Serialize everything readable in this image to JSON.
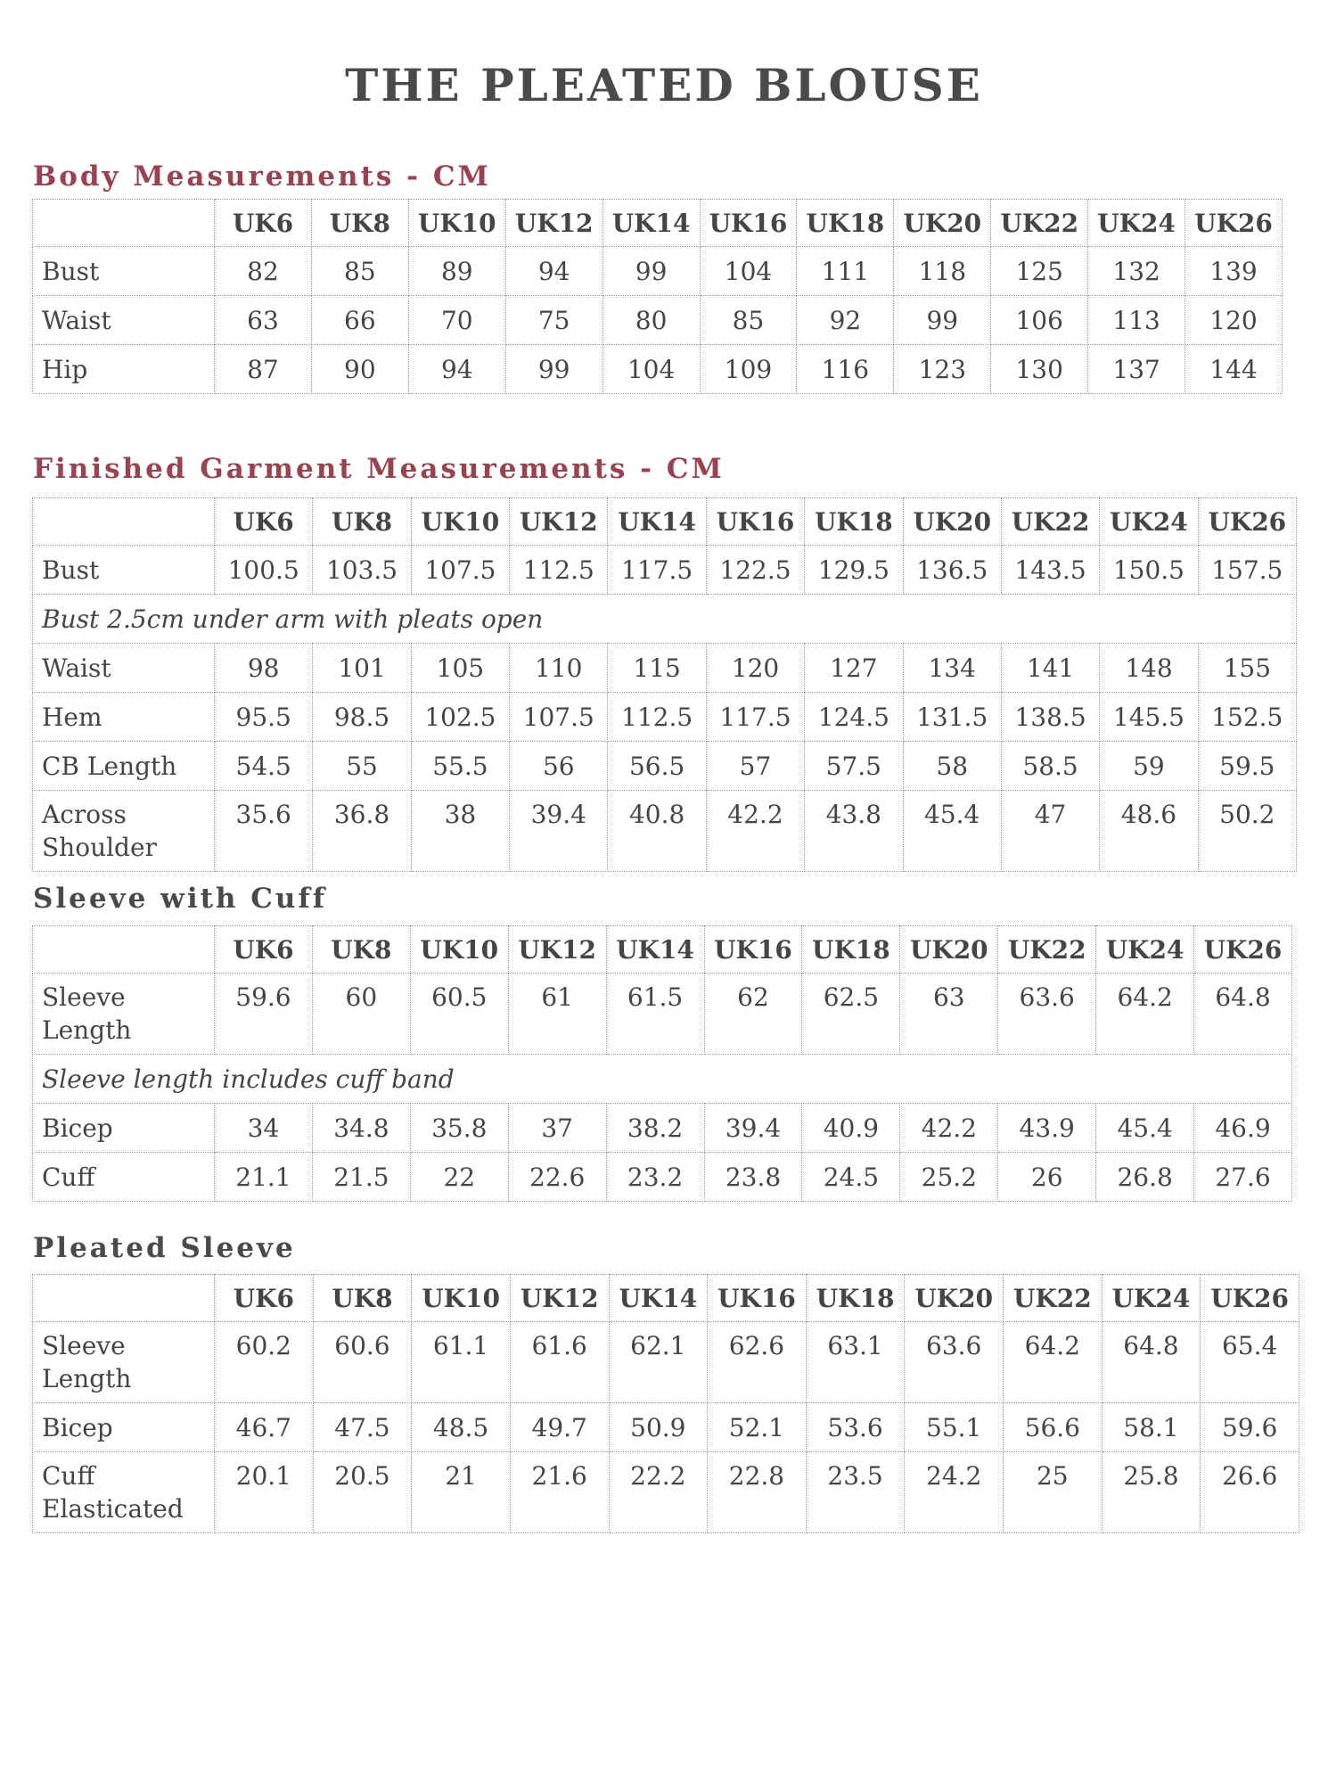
{
  "title": "THE PLEATED BLOUSE",
  "sizes": [
    "UK6",
    "UK8",
    "UK10",
    "UK12",
    "UK14",
    "UK16",
    "UK18",
    "UK20",
    "UK22",
    "UK24",
    "UK26"
  ],
  "colors": {
    "heading_accent": "#9a4350",
    "text": "#454545"
  },
  "sections": [
    {
      "heading": "Body Measurements - CM",
      "rows": [
        {
          "label": "Bust",
          "values": [
            "82",
            "85",
            "89",
            "94",
            "99",
            "104",
            "111",
            "118",
            "125",
            "132",
            "139"
          ]
        },
        {
          "label": "Waist",
          "values": [
            "63",
            "66",
            "70",
            "75",
            "80",
            "85",
            "92",
            "99",
            "106",
            "113",
            "120"
          ]
        },
        {
          "label": "Hip",
          "values": [
            "87",
            "90",
            "94",
            "99",
            "104",
            "109",
            "116",
            "123",
            "130",
            "137",
            "144"
          ]
        }
      ]
    },
    {
      "heading": "Finished Garment Measurements - CM",
      "rows": [
        {
          "label": "Bust",
          "values": [
            "100.5",
            "103.5",
            "107.5",
            "112.5",
            "117.5",
            "122.5",
            "129.5",
            "136.5",
            "143.5",
            "150.5",
            "157.5"
          ]
        },
        {
          "note": "Bust 2.5cm under arm with pleats open"
        },
        {
          "label": "Waist",
          "values": [
            "98",
            "101",
            "105",
            "110",
            "115",
            "120",
            "127",
            "134",
            "141",
            "148",
            "155"
          ]
        },
        {
          "label": "Hem",
          "values": [
            "95.5",
            "98.5",
            "102.5",
            "107.5",
            "112.5",
            "117.5",
            "124.5",
            "131.5",
            "138.5",
            "145.5",
            "152.5"
          ]
        },
        {
          "label": "CB Length",
          "values": [
            "54.5",
            "55",
            "55.5",
            "56",
            "56.5",
            "57",
            "57.5",
            "58",
            "58.5",
            "59",
            "59.5"
          ]
        },
        {
          "label": "Across Shoulder",
          "values": [
            "35.6",
            "36.8",
            "38",
            "39.4",
            "40.8",
            "42.2",
            "43.8",
            "45.4",
            "47",
            "48.6",
            "50.2"
          ]
        }
      ]
    },
    {
      "heading": "Sleeve with Cuff",
      "rows": [
        {
          "label": "Sleeve Length",
          "values": [
            "59.6",
            "60",
            "60.5",
            "61",
            "61.5",
            "62",
            "62.5",
            "63",
            "63.6",
            "64.2",
            "64.8"
          ]
        },
        {
          "note": "Sleeve length includes cuff band"
        },
        {
          "label": "Bicep",
          "values": [
            "34",
            "34.8",
            "35.8",
            "37",
            "38.2",
            "39.4",
            "40.9",
            "42.2",
            "43.9",
            "45.4",
            "46.9"
          ]
        },
        {
          "label": "Cuff",
          "values": [
            "21.1",
            "21.5",
            "22",
            "22.6",
            "23.2",
            "23.8",
            "24.5",
            "25.2",
            "26",
            "26.8",
            "27.6"
          ]
        }
      ]
    },
    {
      "heading": "Pleated Sleeve",
      "rows": [
        {
          "label": "Sleeve Length",
          "values": [
            "60.2",
            "60.6",
            "61.1",
            "61.6",
            "62.1",
            "62.6",
            "63.1",
            "63.6",
            "64.2",
            "64.8",
            "65.4"
          ]
        },
        {
          "label": "Bicep",
          "values": [
            "46.7",
            "47.5",
            "48.5",
            "49.7",
            "50.9",
            "52.1",
            "53.6",
            "55.1",
            "56.6",
            "58.1",
            "59.6"
          ]
        },
        {
          "label": "Cuff Elasticated",
          "values": [
            "20.1",
            "20.5",
            "21",
            "21.6",
            "22.2",
            "22.8",
            "23.5",
            "24.2",
            "25",
            "25.8",
            "26.6"
          ]
        }
      ]
    }
  ]
}
